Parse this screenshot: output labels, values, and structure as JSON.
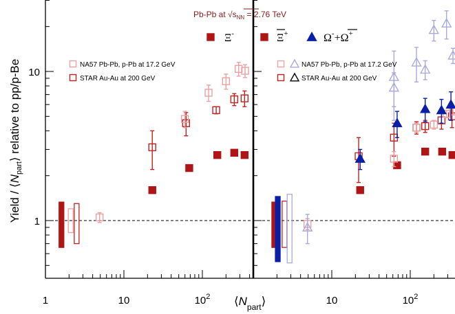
{
  "chart_data": {
    "type": "scatter",
    "title": "Pb-Pb at √sNN = 2.76 TeV",
    "title_parts": {
      "prefix": "Pb-Pb at ",
      "sqrt": "√",
      "s": "s",
      "sub": "NN",
      "suffix": " = 2.76 TeV"
    },
    "ylabel": {
      "pre": "Yield / ⟨",
      "N": "N",
      "sub": "part",
      "post": "⟩ relative to pp/p-Be"
    },
    "xlabel": {
      "pre": "⟨",
      "N": "N",
      "sub": "part",
      "post": "⟩"
    },
    "x_scale": "log",
    "y_scale": "log",
    "ylim": [
      0.4,
      30
    ],
    "y_ticks": [
      {
        "v": 1,
        "label": "1"
      },
      {
        "v": 10,
        "label": "10"
      }
    ],
    "colors": {
      "pbpb_xi": "#b01515",
      "pbpb_omega": "#0a1fa8",
      "na57_xi": "#eda0a0",
      "na57_omega": "#a9a9df",
      "star_xi": "#c42020",
      "star_omega": "#6a6ad8",
      "title": "#8a1b1b"
    },
    "panels": [
      {
        "id": "left",
        "xlim": [
          1,
          600
        ],
        "x_ticks": [
          {
            "v": 1,
            "label": "1"
          },
          {
            "v": 10,
            "label": "10"
          },
          {
            "v": 100,
            "label": "10",
            "sup": "2"
          }
        ],
        "species_label": "Ξ",
        "species_sup": "-",
        "legend": [
          {
            "text": "NA57 Pb-Pb, p-Pb at 17.2 GeV",
            "style": "na57"
          },
          {
            "text": "STAR Au-Au at 200 GeV",
            "style": "star"
          }
        ],
        "series": [
          {
            "name": "",
            "style": "pbpb_xi",
            "x": [
              23,
              68,
              155,
              255,
              345
            ],
            "y": [
              1.6,
              2.25,
              2.75,
              2.85,
              2.75
            ],
            "err": [
              0.08,
              0.1,
              0.12,
              0.12,
              0.12
            ]
          },
          {
            "name": "",
            "style": "star_xi",
            "x": [
              23,
              62,
              150,
              255,
              345
            ],
            "y": [
              3.1,
              4.5,
              5.5,
              6.5,
              6.6
            ],
            "err": [
              0.9,
              0.8,
              0.3,
              0.6,
              0.8
            ]
          },
          {
            "name": "",
            "style": "na57_xi",
            "x": [
              4.9,
              60,
              120,
              200,
              290,
              350
            ],
            "y": [
              1.05,
              4.8,
              7.2,
              8.6,
              10.4,
              10.1
            ],
            "err": [
              0.08,
              0.6,
              0.9,
              1.0,
              1.1,
              1.0
            ]
          }
        ],
        "syst": [
          {
            "style": "pbpb_xi",
            "x": 1.6,
            "lo": 0.66,
            "hi": 1.33
          },
          {
            "style": "na57_xi",
            "x": 2.1,
            "lo": 0.83,
            "hi": 1.2
          },
          {
            "style": "star_xi",
            "x": 2.5,
            "lo": 0.7,
            "hi": 1.3
          }
        ]
      },
      {
        "id": "right",
        "xlim": [
          1,
          400
        ],
        "x_ticks": [
          {
            "v": 10,
            "label": "10"
          },
          {
            "v": 100,
            "label": "10",
            "sup": "2"
          }
        ],
        "species_label": "Ξ",
        "species_sup": "+",
        "species_label2": "Ω",
        "species_sup2": "-",
        "species_plus": "+",
        "species_label3": "Ω",
        "species_sup3": "+",
        "legend": [
          {
            "text": "NA57 Pb-Pb, p-Pb at 17.2 GeV",
            "style": "na57"
          },
          {
            "text": "STAR Au-Au at 200 GeV",
            "style": "star"
          }
        ],
        "series": [
          {
            "name": "",
            "style": "pbpb_xi",
            "x": [
              23,
              68,
              155,
              255,
              345
            ],
            "y": [
              1.6,
              2.35,
              2.9,
              2.9,
              2.75
            ],
            "err": [
              0.08,
              0.1,
              0.12,
              0.12,
              0.12
            ]
          },
          {
            "name": "",
            "style": "star_xi",
            "x": [
              22,
              62,
              120,
              155,
              250,
              340
            ],
            "y": [
              2.7,
              3.6,
              4.2,
              4.3,
              4.7,
              5.0
            ],
            "err": [
              0.9,
              0.9,
              0.4,
              0.4,
              0.6,
              0.8
            ]
          },
          {
            "name": "",
            "style": "na57_xi",
            "x": [
              4.9,
              62,
              120,
              200,
              290,
              350
            ],
            "y": [
              0.95,
              2.6,
              4.2,
              4.4,
              5.2,
              5.4
            ],
            "err": [
              0.08,
              0.3,
              0.3,
              0.3,
              0.3,
              0.3
            ]
          },
          {
            "name": "",
            "style": "pbpb_omega",
            "x": [
              23,
              68,
              155,
              250,
              330
            ],
            "y": [
              2.6,
              4.5,
              5.6,
              5.5,
              6.0
            ],
            "err": [
              0.4,
              0.9,
              1.0,
              1.0,
              1.3
            ]
          },
          {
            "name": "",
            "style": "na57_omega",
            "x": [
              4.9,
              62,
              62,
              120,
              155,
              200,
              290,
              350
            ],
            "y": [
              0.9,
              9.2,
              7.8,
              11.5,
              10.3,
              19.0,
              21.0,
              12.8
            ],
            "err": [
              0.2,
              4.5,
              2.0,
              3.0,
              1.5,
              3.0,
              4.5,
              1.5
            ]
          }
        ],
        "syst": [
          {
            "style": "pbpb_xi",
            "x": 1.85,
            "lo": 0.66,
            "hi": 1.33
          },
          {
            "style": "pbpb_omega",
            "x": 2.05,
            "lo": 0.53,
            "hi": 1.45
          },
          {
            "style": "star_xi",
            "x": 2.5,
            "lo": 0.66,
            "hi": 1.35
          },
          {
            "style": "na57_omega",
            "x": 2.9,
            "lo": 0.52,
            "hi": 1.5
          }
        ]
      }
    ]
  }
}
